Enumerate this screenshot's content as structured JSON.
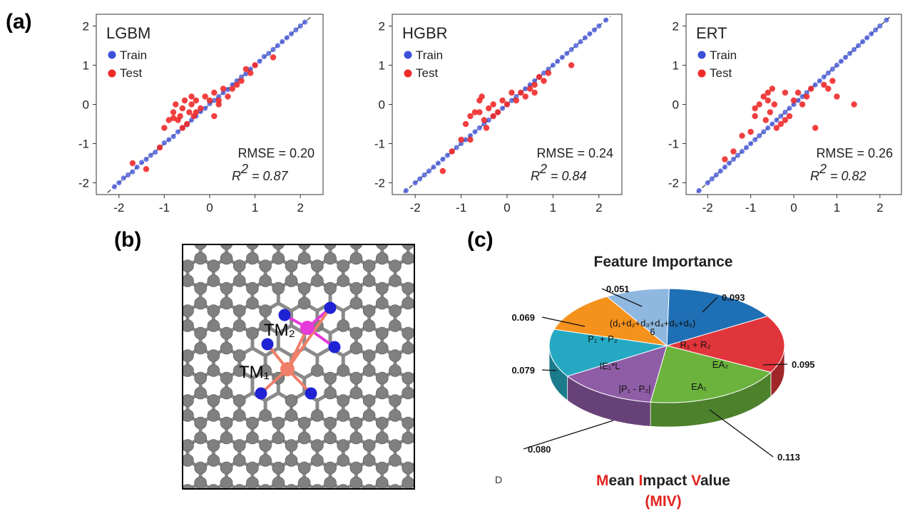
{
  "labels": {
    "a": "(a)",
    "b": "(b)",
    "c": "(c)"
  },
  "chart_data": [
    {
      "type": "scatter",
      "title": "LGBM",
      "xlim": [
        -2.5,
        2.5
      ],
      "ylim": [
        -2.3,
        2.3
      ],
      "ticks": [
        -2,
        -1,
        0,
        1,
        2
      ],
      "tick_labels": [
        "-2",
        "-1",
        "0",
        "1",
        "2"
      ],
      "legend": [
        "Train",
        "Test"
      ],
      "legend_position": "top-left",
      "rmse_text": "RMSE = 0.20",
      "r2_label": "R",
      "r2_sup": "2",
      "r2_value": "= 0.87",
      "series": [
        {
          "name": "Train",
          "color": "#3b4fd8",
          "x": [
            -2.1,
            -2.0,
            -1.9,
            -1.8,
            -1.7,
            -1.6,
            -1.5,
            -1.4,
            -1.3,
            -1.2,
            -1.1,
            -1.0,
            -0.9,
            -0.8,
            -0.7,
            -0.6,
            -0.5,
            -0.4,
            -0.3,
            -0.2,
            -0.1,
            0.0,
            0.1,
            0.2,
            0.3,
            0.4,
            0.5,
            0.6,
            0.7,
            0.8,
            0.9,
            1.0,
            1.1,
            1.2,
            1.3,
            1.4,
            1.5,
            1.6,
            1.7,
            1.8,
            1.9,
            2.0,
            2.1
          ],
          "y": [
            -2.1,
            -2.0,
            -1.88,
            -1.8,
            -1.72,
            -1.6,
            -1.48,
            -1.4,
            -1.3,
            -1.22,
            -1.1,
            -0.98,
            -0.9,
            -0.82,
            -0.7,
            -0.6,
            -0.52,
            -0.4,
            -0.3,
            -0.18,
            -0.1,
            0.02,
            0.1,
            0.2,
            0.3,
            0.38,
            0.5,
            0.6,
            0.7,
            0.78,
            0.9,
            1.0,
            1.1,
            1.22,
            1.3,
            1.4,
            1.5,
            1.6,
            1.7,
            1.8,
            1.9,
            2.0,
            2.1
          ]
        },
        {
          "name": "Test",
          "color": "#ef2a2a",
          "x": [
            -1.7,
            -1.4,
            -1.1,
            -1.0,
            -0.9,
            -0.8,
            -0.75,
            -0.7,
            -0.65,
            -0.6,
            -0.55,
            -0.5,
            -0.45,
            -0.4,
            -0.35,
            -0.3,
            -0.2,
            -0.1,
            0.0,
            0.1,
            0.2,
            0.3,
            0.4,
            0.5,
            0.6,
            0.7,
            0.8,
            0.9,
            1.0,
            1.4,
            -0.6,
            -0.3,
            0.1,
            -0.8,
            -0.4,
            0.2
          ],
          "y": [
            -1.5,
            -1.65,
            -1.1,
            -0.6,
            -0.4,
            -0.2,
            0.0,
            -0.4,
            -0.3,
            -0.1,
            0.1,
            -0.5,
            -0.2,
            0.0,
            -0.3,
            0.1,
            -0.1,
            0.2,
            0.1,
            0.3,
            0.0,
            0.4,
            0.2,
            0.4,
            0.5,
            0.6,
            0.9,
            0.8,
            1.0,
            1.2,
            -0.6,
            -0.2,
            -0.3,
            -0.35,
            0.2,
            0.1
          ]
        }
      ]
    },
    {
      "type": "scatter",
      "title": "HGBR",
      "xlim": [
        -2.5,
        2.5
      ],
      "ylim": [
        -2.3,
        2.3
      ],
      "ticks": [
        -2,
        -1,
        0,
        1,
        2
      ],
      "tick_labels": [
        "-2",
        "-1",
        "0",
        "1",
        "2"
      ],
      "legend": [
        "Train",
        "Test"
      ],
      "legend_position": "top-left",
      "rmse_text": "RMSE = 0.24",
      "r2_label": "R",
      "r2_sup": "2",
      "r2_value": "= 0.84",
      "series": [
        {
          "name": "Train",
          "color": "#3b4fd8",
          "x": [
            -2.2,
            -2.0,
            -1.9,
            -1.8,
            -1.7,
            -1.6,
            -1.5,
            -1.4,
            -1.3,
            -1.2,
            -1.1,
            -1.0,
            -0.9,
            -0.8,
            -0.7,
            -0.6,
            -0.5,
            -0.4,
            -0.3,
            -0.2,
            -0.1,
            0.0,
            0.1,
            0.2,
            0.3,
            0.4,
            0.5,
            0.6,
            0.7,
            0.8,
            0.9,
            1.0,
            1.1,
            1.2,
            1.3,
            1.4,
            1.5,
            1.6,
            1.7,
            1.8,
            1.9,
            2.0,
            2.15
          ],
          "y": [
            -2.2,
            -2.0,
            -1.9,
            -1.8,
            -1.7,
            -1.6,
            -1.5,
            -1.4,
            -1.3,
            -1.2,
            -1.1,
            -1.0,
            -0.9,
            -0.8,
            -0.7,
            -0.6,
            -0.5,
            -0.4,
            -0.3,
            -0.2,
            -0.1,
            0.0,
            0.1,
            0.2,
            0.3,
            0.4,
            0.5,
            0.6,
            0.7,
            0.8,
            0.9,
            1.0,
            1.1,
            1.2,
            1.3,
            1.4,
            1.5,
            1.6,
            1.7,
            1.8,
            1.9,
            2.0,
            2.15
          ]
        },
        {
          "name": "Test",
          "color": "#ef2a2a",
          "x": [
            -1.4,
            -1.2,
            -1.0,
            -0.9,
            -0.8,
            -0.7,
            -0.6,
            -0.55,
            -0.5,
            -0.45,
            -0.4,
            -0.3,
            -0.2,
            -0.1,
            0.0,
            0.1,
            0.2,
            0.3,
            0.4,
            0.5,
            0.6,
            0.7,
            0.8,
            0.9,
            1.4,
            -0.8,
            -0.6,
            -0.3,
            0.6
          ],
          "y": [
            -1.7,
            -1.2,
            -0.9,
            -0.5,
            -0.3,
            -0.2,
            -0.2,
            0.2,
            -0.4,
            -0.6,
            -0.1,
            0.0,
            -0.2,
            0.1,
            0.0,
            0.3,
            0.1,
            0.3,
            0.2,
            0.4,
            0.5,
            0.7,
            0.6,
            0.8,
            1.0,
            -0.9,
            0.1,
            -0.3,
            0.3
          ]
        }
      ]
    },
    {
      "type": "scatter",
      "title": "ERT",
      "xlim": [
        -2.5,
        2.5
      ],
      "ylim": [
        -2.3,
        2.3
      ],
      "ticks": [
        -2,
        -1,
        0,
        1,
        2
      ],
      "tick_labels": [
        "-2",
        "-1",
        "0",
        "1",
        "2"
      ],
      "legend": [
        "Train",
        "Test"
      ],
      "legend_position": "top-left",
      "rmse_text": "RMSE = 0.26",
      "r2_label": "R",
      "r2_sup": "2",
      "r2_value": "= 0.82",
      "series": [
        {
          "name": "Train",
          "color": "#3b4fd8",
          "x": [
            -2.2,
            -2.0,
            -1.9,
            -1.8,
            -1.7,
            -1.6,
            -1.5,
            -1.4,
            -1.3,
            -1.2,
            -1.1,
            -1.0,
            -0.9,
            -0.8,
            -0.7,
            -0.6,
            -0.5,
            -0.4,
            -0.3,
            -0.2,
            -0.1,
            0.0,
            0.1,
            0.2,
            0.3,
            0.4,
            0.5,
            0.6,
            0.7,
            0.8,
            0.9,
            1.0,
            1.1,
            1.2,
            1.3,
            1.4,
            1.5,
            1.6,
            1.7,
            1.8,
            1.9,
            2.0,
            2.15
          ],
          "y": [
            -2.2,
            -2.0,
            -1.9,
            -1.8,
            -1.7,
            -1.6,
            -1.5,
            -1.4,
            -1.3,
            -1.2,
            -1.1,
            -1.0,
            -0.9,
            -0.8,
            -0.7,
            -0.6,
            -0.5,
            -0.4,
            -0.3,
            -0.2,
            -0.1,
            0.0,
            0.1,
            0.2,
            0.3,
            0.4,
            0.5,
            0.6,
            0.7,
            0.8,
            0.9,
            1.0,
            1.1,
            1.2,
            1.3,
            1.4,
            1.5,
            1.6,
            1.7,
            1.8,
            1.9,
            2.0,
            2.15
          ]
        },
        {
          "name": "Test",
          "color": "#ef2a2a",
          "x": [
            -1.6,
            -1.4,
            -1.2,
            -1.0,
            -0.9,
            -0.8,
            -0.7,
            -0.65,
            -0.6,
            -0.55,
            -0.5,
            -0.45,
            -0.4,
            -0.3,
            -0.2,
            -0.1,
            0.0,
            0.2,
            0.3,
            0.4,
            0.5,
            0.7,
            0.8,
            0.9,
            1.0,
            1.4,
            -0.9,
            -0.6,
            -0.2,
            0.1
          ],
          "y": [
            -1.4,
            -1.2,
            -0.8,
            -0.7,
            -0.3,
            0.0,
            0.2,
            -0.4,
            0.3,
            -0.2,
            0.4,
            0.0,
            -0.6,
            -0.5,
            0.3,
            -0.3,
            0.1,
            0.0,
            0.2,
            0.4,
            -0.6,
            0.5,
            0.4,
            0.6,
            0.2,
            0.0,
            -0.1,
            0.1,
            -0.4,
            0.3
          ]
        }
      ]
    },
    {
      "type": "pie",
      "title": "Feature Importance",
      "slices": [
        {
          "label": "R₁ + R₂",
          "value": 0.093,
          "value_text": "0.093",
          "color": "#1f6fb5"
        },
        {
          "label": "EA₂",
          "value": 0.095,
          "value_text": "0.095",
          "color": "#e0353a"
        },
        {
          "label": "EA₁",
          "value": 0.113,
          "value_text": "0.113",
          "color": "#6bb33d"
        },
        {
          "label": "|P₁ - P₂|",
          "value": 0.08,
          "value_text": "0.080",
          "color": "#8f5ca6"
        },
        {
          "label": "IE₁*L",
          "value": 0.079,
          "value_text": "0.079",
          "color": "#25a9c3"
        },
        {
          "label": "P₁ + P₂",
          "value": 0.069,
          "value_text": "0.069",
          "color": "#f5921e"
        },
        {
          "label": "(d₁+d₂+d₃+d₄+d₅+d₆)",
          "label_den": "6",
          "value": 0.051,
          "value_text": "0.051",
          "color": "#8fb8e0"
        }
      ],
      "caption_parts": [
        {
          "text": "M",
          "red": true
        },
        {
          "text": "ean ",
          "red": false
        },
        {
          "text": "I",
          "red": true
        },
        {
          "text": "mpact ",
          "red": false
        },
        {
          "text": "V",
          "red": true
        },
        {
          "text": "alue",
          "red": false
        }
      ],
      "caption_sub": "(MIV)",
      "stray_glyph": "D"
    }
  ],
  "structure": {
    "tm1_label": "TM₁",
    "tm2_label": "TM₂",
    "colors": {
      "carbon": "#808080",
      "nitrogen": "#1f23d4",
      "tm1": "#f07f6a",
      "tm2": "#e63ad9"
    }
  }
}
